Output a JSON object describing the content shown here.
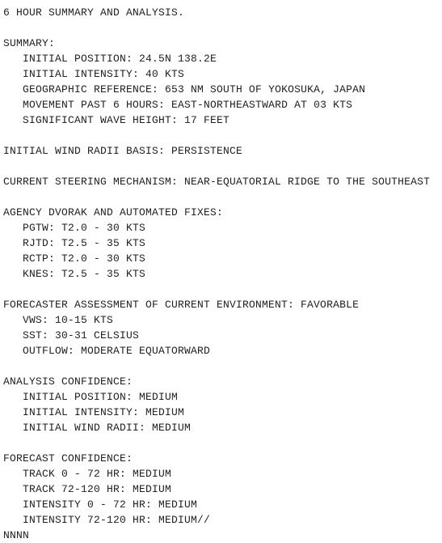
{
  "title": "6 HOUR SUMMARY AND ANALYSIS.",
  "summary_header": "SUMMARY:",
  "summary": {
    "initial_position": "INITIAL POSITION: 24.5N 138.2E",
    "initial_intensity": "INITIAL INTENSITY: 40 KTS",
    "geo_ref": "GEOGRAPHIC REFERENCE: 653 NM SOUTH OF YOKOSUKA, JAPAN",
    "movement": "MOVEMENT PAST 6 HOURS: EAST-NORTHEASTWARD AT 03 KTS",
    "sig_wave": "SIGNIFICANT WAVE HEIGHT: 17 FEET"
  },
  "wind_radii_basis": "INITIAL WIND RADII BASIS: PERSISTENCE",
  "steering": "CURRENT STEERING MECHANISM: NEAR-EQUATORIAL RIDGE TO THE SOUTHEAST",
  "dvorak_header": "AGENCY DVORAK AND AUTOMATED FIXES:",
  "dvorak": {
    "pgtw": "PGTW: T2.0 - 30 KTS",
    "rjtd": "RJTD: T2.5 - 35 KTS",
    "rctp": "RCTP: T2.0 - 30 KTS",
    "knes": "KNES: T2.5 - 35 KTS"
  },
  "env_header": "FORECASTER ASSESSMENT OF CURRENT ENVIRONMENT: FAVORABLE",
  "env": {
    "vws": "VWS: 10-15 KTS",
    "sst": "SST: 30-31 CELSIUS",
    "outflow": "OUTFLOW: MODERATE EQUATORWARD"
  },
  "analysis_conf_header": "ANALYSIS CONFIDENCE:",
  "analysis_conf": {
    "pos": "INITIAL POSITION: MEDIUM",
    "intensity": "INITIAL INTENSITY: MEDIUM",
    "radii": "INITIAL WIND RADII: MEDIUM"
  },
  "forecast_conf_header": "FORECAST CONFIDENCE:",
  "forecast_conf": {
    "track_0_72": "TRACK 0 - 72 HR: MEDIUM",
    "track_72_120": "TRACK 72-120 HR: MEDIUM",
    "int_0_72": "INTENSITY 0 - 72 HR: MEDIUM",
    "int_72_120": "INTENSITY 72-120 HR: MEDIUM//"
  },
  "terminator": "NNNN"
}
